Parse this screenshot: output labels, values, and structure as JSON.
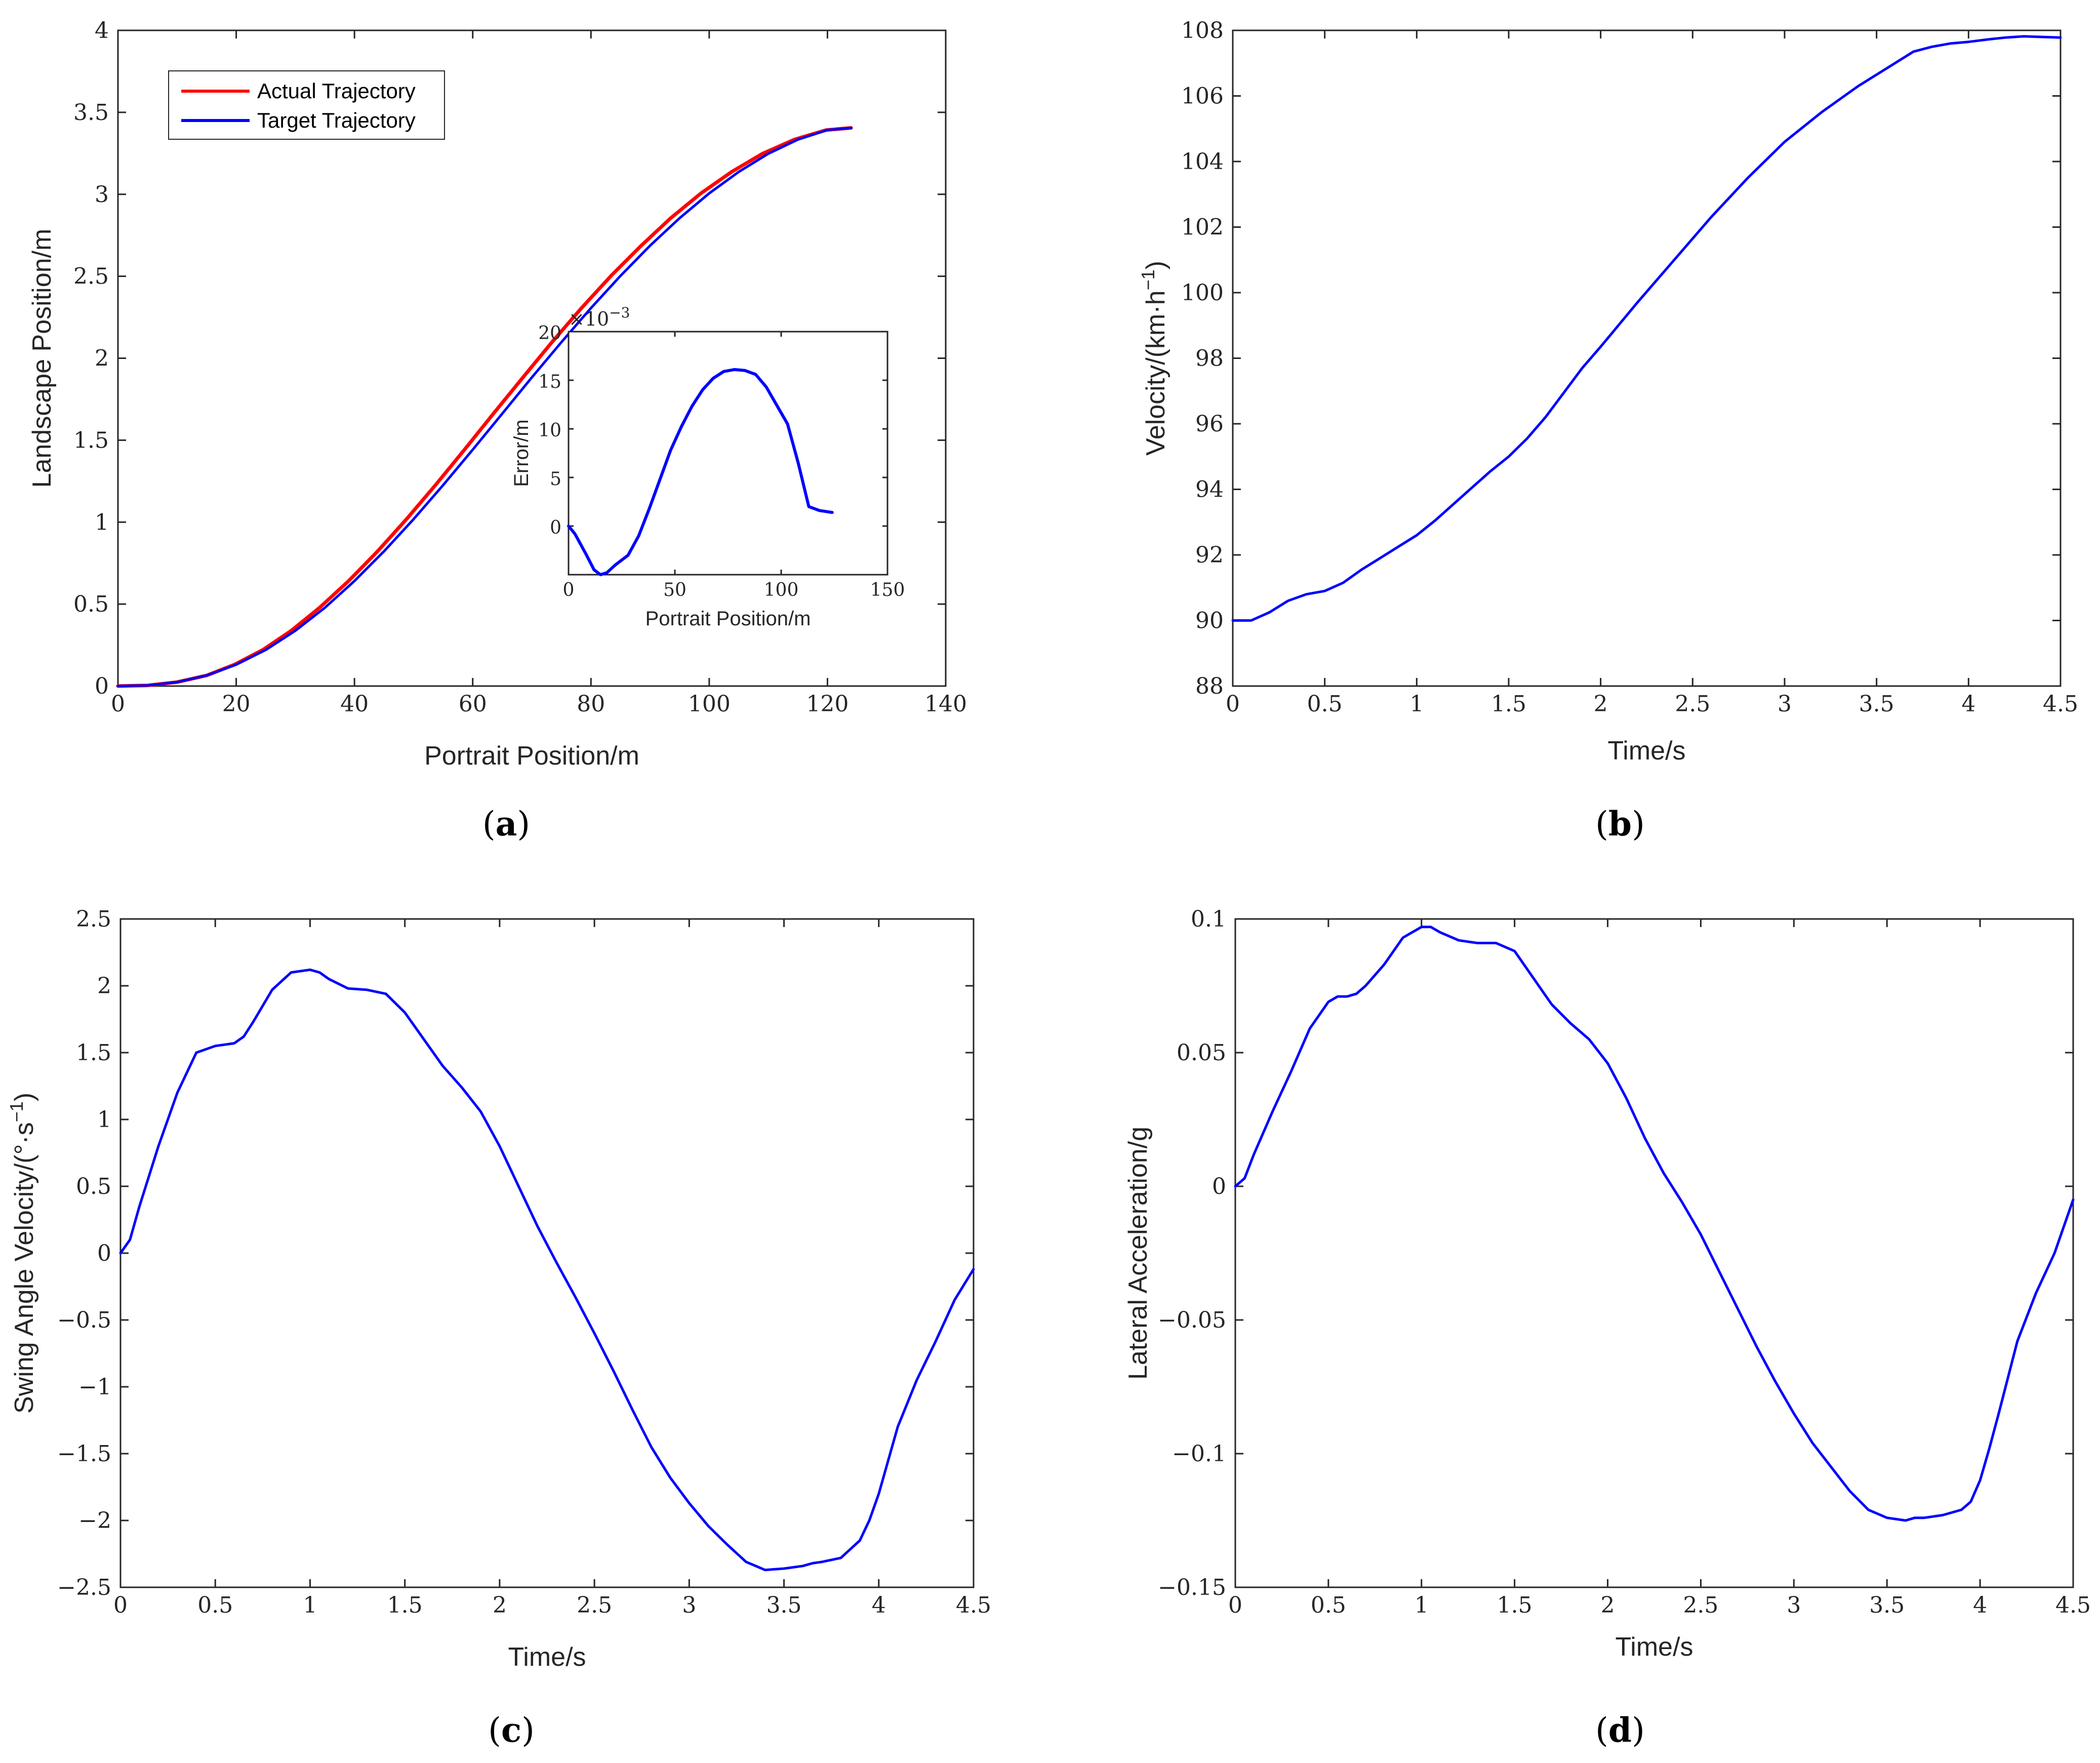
{
  "colors": {
    "actual": "#ff0000",
    "target": "#0000ff",
    "axis": "#262626"
  },
  "chart_data": [
    {
      "id": "a",
      "type": "line",
      "panel_label": "a",
      "xlabel": "Portrait Position/m",
      "ylabel": "Landscape Position/m",
      "xlim": [
        0,
        140
      ],
      "ylim": [
        0,
        4
      ],
      "xticks": [
        0,
        20,
        40,
        60,
        80,
        100,
        120,
        140
      ],
      "yticks": [
        0,
        0.5,
        1,
        1.5,
        2,
        2.5,
        3,
        3.5,
        4
      ],
      "xtick_labels": [
        "0",
        "20",
        "40",
        "60",
        "80",
        "100",
        "120",
        "140"
      ],
      "ytick_labels": [
        "0",
        "0.5",
        "1",
        "1.5",
        "2",
        "2.5",
        "3",
        "3.5",
        "4"
      ],
      "legend": {
        "position": "top-left",
        "entries": [
          "Actual Trajectory",
          "Target Trajectory"
        ]
      },
      "series": [
        {
          "name": "Actual Trajectory",
          "color": "#ff0000",
          "x": [
            0,
            5,
            10,
            15,
            20,
            25,
            30,
            35,
            40,
            45,
            50,
            55,
            60,
            65,
            70,
            75,
            80,
            85,
            90,
            95,
            100,
            105,
            110,
            115,
            120,
            124
          ],
          "y": [
            0,
            0.004,
            0.024,
            0.065,
            0.131,
            0.221,
            0.338,
            0.478,
            0.641,
            0.822,
            1.018,
            1.226,
            1.442,
            1.662,
            1.883,
            2.098,
            2.306,
            2.503,
            2.687,
            2.855,
            3.006,
            3.137,
            3.248,
            3.334,
            3.392,
            3.405
          ]
        },
        {
          "name": "Target Trajectory",
          "color": "#0000ff",
          "x": [
            0,
            5,
            10,
            15,
            20,
            25,
            30,
            35,
            40,
            45,
            50,
            55,
            60,
            65,
            70,
            75,
            80,
            85,
            90,
            95,
            100,
            105,
            110,
            115,
            120,
            124
          ],
          "y": [
            0,
            0.004,
            0.024,
            0.065,
            0.131,
            0.221,
            0.338,
            0.478,
            0.641,
            0.822,
            1.018,
            1.226,
            1.442,
            1.662,
            1.883,
            2.098,
            2.306,
            2.503,
            2.687,
            2.855,
            3.006,
            3.137,
            3.248,
            3.334,
            3.392,
            3.405
          ]
        }
      ],
      "actual_curve_offset_x": [
        0,
        0,
        0,
        0,
        -0.3,
        -0.5,
        -0.7,
        -0.9,
        -1.0,
        -1.1,
        -1.2,
        -1.3,
        -1.4,
        -1.5,
        -1.5,
        -1.6,
        -1.6,
        -1.6,
        -1.5,
        -1.5,
        -1.4,
        -1.2,
        -1.0,
        -0.6,
        -0.2,
        0
      ],
      "inset": {
        "type": "line",
        "xlabel": "Portrait Position/m",
        "ylabel": "Error/m",
        "multiplier": "×10",
        "multiplier_exponent": "−3",
        "xlim": [
          0,
          150
        ],
        "ylim": [
          -5,
          20
        ],
        "xticks": [
          0,
          50,
          100,
          150
        ],
        "yticks": [
          0,
          5,
          10,
          15,
          20
        ],
        "xtick_labels": [
          "0",
          "50",
          "100",
          "150"
        ],
        "ytick_labels": [
          "0",
          "5",
          "10",
          "15",
          "20"
        ],
        "series": [
          {
            "name": "Error",
            "color": "#0000ff",
            "x": [
              0,
              3,
              8,
              12,
              15,
              18,
              22,
              28,
              33,
              38,
              43,
              48,
              53,
              58,
              63,
              68,
              73,
              78,
              83,
              88,
              93,
              98,
              103,
              108,
              113,
              118,
              121,
              124
            ],
            "y": [
              0,
              -0.8,
              -2.8,
              -4.5,
              -5.0,
              -4.8,
              -4.0,
              -3.0,
              -1.0,
              1.8,
              4.8,
              7.8,
              10.2,
              12.3,
              14.0,
              15.2,
              15.9,
              16.1,
              16.0,
              15.6,
              14.3,
              12.4,
              10.5,
              6.5,
              2.0,
              1.6,
              1.5,
              1.4
            ]
          }
        ]
      }
    },
    {
      "id": "b",
      "type": "line",
      "panel_label": "b",
      "xlabel": "Time/s",
      "ylabel_main": "Velocity/(km·h",
      "ylabel_exp": "−1",
      "ylabel_close": ")",
      "xlim": [
        0,
        4.5
      ],
      "ylim": [
        88,
        108
      ],
      "xticks": [
        0,
        0.5,
        1,
        1.5,
        2,
        2.5,
        3,
        3.5,
        4,
        4.5
      ],
      "yticks": [
        88,
        90,
        92,
        94,
        96,
        98,
        100,
        102,
        104,
        106,
        108
      ],
      "xtick_labels": [
        "0",
        "0.5",
        "1",
        "1.5",
        "2",
        "2.5",
        "3",
        "3.5",
        "4",
        "4.5"
      ],
      "ytick_labels": [
        "88",
        "90",
        "92",
        "94",
        "96",
        "98",
        "100",
        "102",
        "104",
        "106",
        "108"
      ],
      "series": [
        {
          "name": "Velocity",
          "color": "#0000ff",
          "x": [
            0,
            0.1,
            0.2,
            0.3,
            0.4,
            0.5,
            0.6,
            0.7,
            0.8,
            0.9,
            1.0,
            1.1,
            1.2,
            1.3,
            1.4,
            1.5,
            1.6,
            1.7,
            1.8,
            1.9,
            2.0,
            2.2,
            2.4,
            2.6,
            2.8,
            3.0,
            3.2,
            3.4,
            3.6,
            3.7,
            3.8,
            3.9,
            4.0,
            4.1,
            4.2,
            4.3,
            4.4,
            4.5
          ],
          "y": [
            90.0,
            90.0,
            90.25,
            90.6,
            90.8,
            90.9,
            91.15,
            91.55,
            91.9,
            92.25,
            92.6,
            93.05,
            93.55,
            94.05,
            94.55,
            95.0,
            95.55,
            96.2,
            96.95,
            97.7,
            98.35,
            99.7,
            101.0,
            102.3,
            103.5,
            104.6,
            105.5,
            106.3,
            107.0,
            107.35,
            107.5,
            107.6,
            107.65,
            107.72,
            107.78,
            107.82,
            107.8,
            107.78
          ]
        }
      ]
    },
    {
      "id": "c",
      "type": "line",
      "panel_label": "c",
      "xlabel": "Time/s",
      "ylabel_main": "Swing Angle Velocity/(°·s",
      "ylabel_exp": "−1",
      "ylabel_close": ")",
      "xlim": [
        0,
        4.5
      ],
      "ylim": [
        -2.5,
        2.5
      ],
      "xticks": [
        0,
        0.5,
        1,
        1.5,
        2,
        2.5,
        3,
        3.5,
        4,
        4.5
      ],
      "yticks": [
        -2.5,
        -2,
        -1.5,
        -1,
        -0.5,
        0,
        0.5,
        1,
        1.5,
        2,
        2.5
      ],
      "xtick_labels": [
        "0",
        "0.5",
        "1",
        "1.5",
        "2",
        "2.5",
        "3",
        "3.5",
        "4",
        "4.5"
      ],
      "ytick_labels": [
        "−2.5",
        "−2",
        "−1.5",
        "−1",
        "−0.5",
        "0",
        "0.5",
        "1",
        "1.5",
        "2",
        "2.5"
      ],
      "series": [
        {
          "name": "Swing Angle Velocity",
          "color": "#0000ff",
          "x": [
            0,
            0.05,
            0.1,
            0.2,
            0.3,
            0.4,
            0.5,
            0.55,
            0.6,
            0.65,
            0.7,
            0.8,
            0.9,
            1.0,
            1.05,
            1.1,
            1.2,
            1.3,
            1.4,
            1.5,
            1.6,
            1.7,
            1.8,
            1.9,
            2.0,
            2.1,
            2.2,
            2.3,
            2.4,
            2.5,
            2.6,
            2.7,
            2.8,
            2.9,
            3.0,
            3.1,
            3.2,
            3.3,
            3.4,
            3.5,
            3.6,
            3.65,
            3.7,
            3.8,
            3.9,
            3.95,
            4.0,
            4.05,
            4.1,
            4.2,
            4.3,
            4.4,
            4.5
          ],
          "y": [
            0,
            0.1,
            0.35,
            0.8,
            1.2,
            1.5,
            1.55,
            1.56,
            1.57,
            1.62,
            1.73,
            1.97,
            2.1,
            2.12,
            2.1,
            2.05,
            1.98,
            1.97,
            1.94,
            1.8,
            1.6,
            1.4,
            1.24,
            1.06,
            0.8,
            0.5,
            0.2,
            -0.07,
            -0.33,
            -0.6,
            -0.88,
            -1.17,
            -1.45,
            -1.68,
            -1.87,
            -2.04,
            -2.18,
            -2.31,
            -2.37,
            -2.36,
            -2.34,
            -2.32,
            -2.31,
            -2.28,
            -2.15,
            -2.0,
            -1.8,
            -1.55,
            -1.3,
            -0.95,
            -0.66,
            -0.35,
            -0.12
          ]
        }
      ]
    },
    {
      "id": "d",
      "type": "line",
      "panel_label": "d",
      "xlabel": "Time/s",
      "ylabel": "Lateral Acceleration/g",
      "xlim": [
        0,
        4.5
      ],
      "ylim": [
        -0.15,
        0.1
      ],
      "xticks": [
        0,
        0.5,
        1,
        1.5,
        2,
        2.5,
        3,
        3.5,
        4,
        4.5
      ],
      "yticks": [
        -0.15,
        -0.1,
        -0.05,
        0,
        0.05,
        0.1
      ],
      "xtick_labels": [
        "0",
        "0.5",
        "1",
        "1.5",
        "2",
        "2.5",
        "3",
        "3.5",
        "4",
        "4.5"
      ],
      "ytick_labels": [
        "−0.15",
        "−0.1",
        "−0.05",
        "0",
        "0.05",
        "0.1"
      ],
      "series": [
        {
          "name": "Lateral Acceleration",
          "color": "#0000ff",
          "x": [
            0,
            0.05,
            0.1,
            0.2,
            0.3,
            0.4,
            0.5,
            0.55,
            0.6,
            0.65,
            0.7,
            0.8,
            0.9,
            1.0,
            1.05,
            1.1,
            1.2,
            1.3,
            1.4,
            1.5,
            1.6,
            1.7,
            1.8,
            1.9,
            2.0,
            2.1,
            2.2,
            2.3,
            2.4,
            2.5,
            2.6,
            2.7,
            2.8,
            2.9,
            3.0,
            3.1,
            3.2,
            3.3,
            3.4,
            3.5,
            3.6,
            3.65,
            3.7,
            3.8,
            3.9,
            3.95,
            4.0,
            4.05,
            4.1,
            4.2,
            4.3,
            4.4,
            4.5
          ],
          "y": [
            0,
            0.003,
            0.012,
            0.028,
            0.043,
            0.059,
            0.069,
            0.071,
            0.071,
            0.072,
            0.075,
            0.083,
            0.093,
            0.097,
            0.097,
            0.095,
            0.092,
            0.091,
            0.091,
            0.088,
            0.078,
            0.068,
            0.061,
            0.055,
            0.046,
            0.033,
            0.018,
            0.005,
            -0.006,
            -0.018,
            -0.032,
            -0.046,
            -0.06,
            -0.073,
            -0.085,
            -0.096,
            -0.105,
            -0.114,
            -0.121,
            -0.124,
            -0.125,
            -0.124,
            -0.124,
            -0.123,
            -0.121,
            -0.118,
            -0.11,
            -0.098,
            -0.085,
            -0.058,
            -0.04,
            -0.025,
            -0.005
          ]
        }
      ]
    }
  ]
}
